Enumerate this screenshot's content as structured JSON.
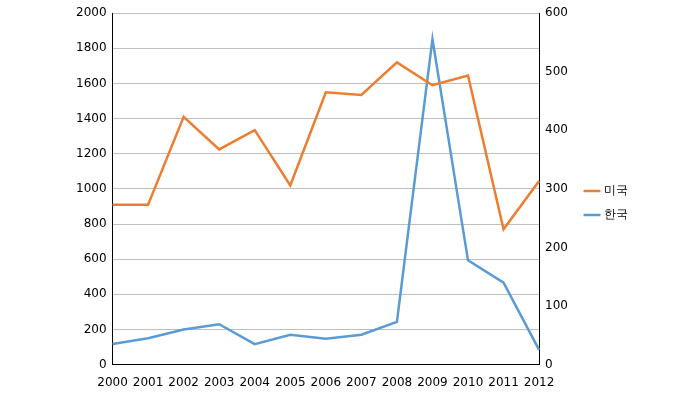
{
  "chart_data": {
    "type": "line",
    "categories": [
      "2000",
      "2001",
      "2002",
      "2003",
      "2004",
      "2005",
      "2006",
      "2007",
      "2008",
      "2009",
      "2010",
      "2011",
      "2012"
    ],
    "series": [
      {
        "name": "미국",
        "color": "#ED7D31",
        "marker": "none",
        "values": [
          910,
          910,
          1410,
          1225,
          1335,
          1020,
          1550,
          1535,
          1720,
          1590,
          1645,
          770,
          1045
        ]
      },
      {
        "name": "한국",
        "color": "#5B9BD5",
        "marker": "none",
        "axis": "y2",
        "values": [
          35,
          45,
          60,
          69,
          35,
          51,
          44,
          51,
          73,
          556,
          178,
          140,
          25
        ]
      }
    ],
    "ylim": [
      0,
      2000
    ],
    "yticks": [
      0,
      200,
      400,
      600,
      800,
      1000,
      1200,
      1400,
      1600,
      1800,
      2000
    ],
    "y2lim": [
      0,
      600
    ],
    "y2ticks": [
      0,
      100,
      200,
      300,
      400,
      500,
      600
    ],
    "grid": true,
    "legend": "right"
  }
}
